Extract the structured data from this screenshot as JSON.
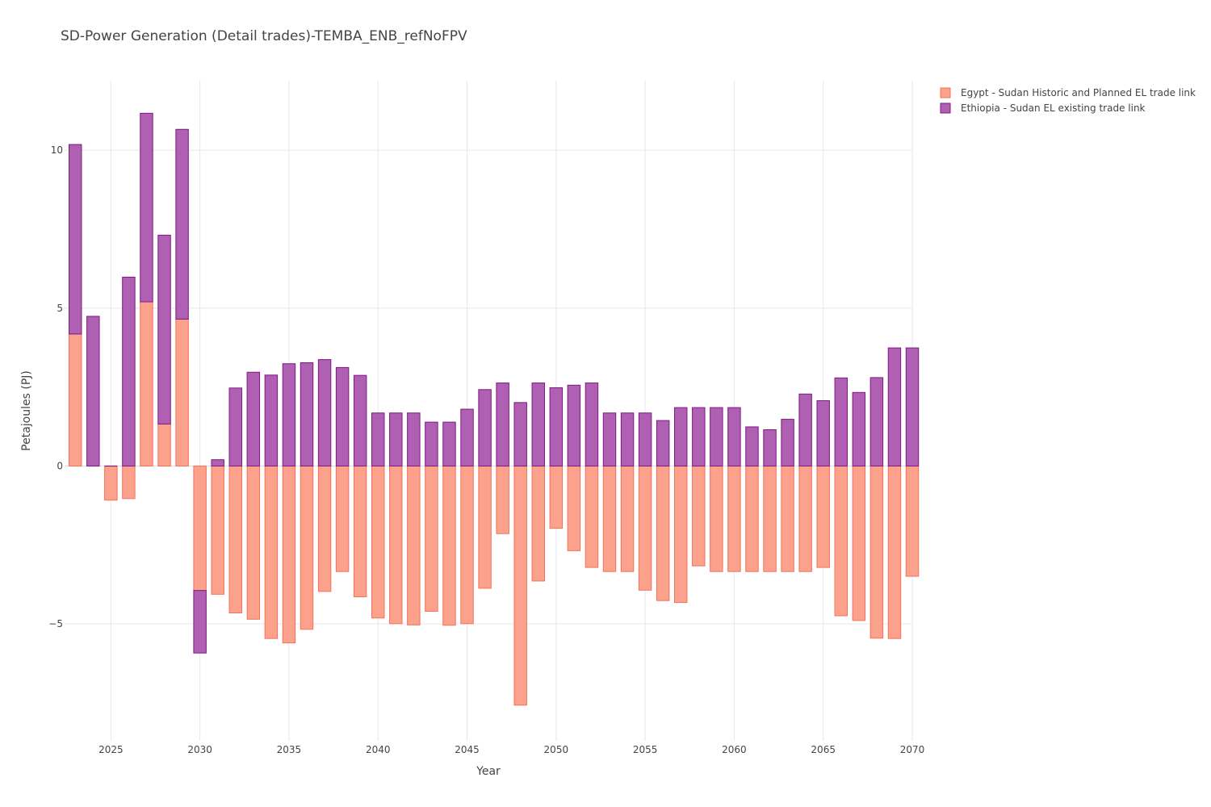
{
  "chart_data": {
    "type": "bar",
    "barmode": "relative",
    "title": "SD-Power Generation (Detail trades)-TEMBA_ENB_refNoFPV",
    "xlabel": "Year",
    "ylabel": "Petajoules (PJ)",
    "xlim": [
      2022.4,
      2070
    ],
    "ylim": [
      -8.7,
      12.2
    ],
    "xticks": [
      2025,
      2030,
      2035,
      2040,
      2045,
      2050,
      2055,
      2060,
      2065,
      2070
    ],
    "xtick_labels": [
      "2025",
      "2030",
      "2035",
      "2040",
      "2045",
      "2050",
      "2055",
      "2060",
      "2065",
      "2070"
    ],
    "yticks": [
      -5,
      0,
      5,
      10
    ],
    "ytick_labels": [
      "−5",
      "0",
      "5",
      "10"
    ],
    "grid": true,
    "legend_position": "top-right",
    "x": [
      2023,
      2024,
      2025,
      2026,
      2027,
      2028,
      2029,
      2030,
      2031,
      2032,
      2033,
      2034,
      2035,
      2036,
      2037,
      2038,
      2039,
      2040,
      2041,
      2042,
      2043,
      2044,
      2045,
      2046,
      2047,
      2048,
      2049,
      2050,
      2051,
      2052,
      2053,
      2054,
      2055,
      2056,
      2057,
      2058,
      2059,
      2060,
      2061,
      2062,
      2063,
      2064,
      2065,
      2066,
      2067,
      2068,
      2069,
      2070
    ],
    "series": [
      {
        "name": "Egypt - Sudan Historic and Planned EL trade link",
        "fill": "#fca28c",
        "stroke": "#f4715a",
        "values": [
          4.18,
          0,
          -1.08,
          -1.03,
          5.2,
          1.33,
          4.65,
          -3.94,
          -4.06,
          -4.65,
          -4.85,
          -5.46,
          -5.6,
          -5.17,
          -3.97,
          -3.34,
          -4.14,
          -4.81,
          -4.99,
          -5.03,
          -4.6,
          -5.04,
          -4.99,
          -3.87,
          -2.14,
          -7.57,
          -3.64,
          -1.97,
          -2.68,
          -3.21,
          -3.34,
          -3.34,
          -3.93,
          -4.26,
          -4.32,
          -3.16,
          -3.34,
          -3.34,
          -3.34,
          -3.34,
          -3.34,
          -3.34,
          -3.21,
          -4.74,
          -4.89,
          -5.45,
          -5.46,
          -3.49
        ]
      },
      {
        "name": "Ethiopia - Sudan EL existing trade link",
        "fill": "#b060b2",
        "stroke": "#7c1a82",
        "values": [
          6.0,
          4.74,
          0,
          5.98,
          5.97,
          5.98,
          6.01,
          -1.98,
          0.2,
          2.47,
          2.97,
          2.88,
          3.24,
          3.27,
          3.37,
          3.12,
          2.87,
          1.68,
          1.68,
          1.68,
          1.39,
          1.39,
          1.8,
          2.42,
          2.63,
          2.01,
          2.63,
          2.48,
          2.56,
          2.63,
          1.68,
          1.68,
          1.68,
          1.44,
          1.85,
          1.85,
          1.85,
          1.85,
          1.24,
          1.15,
          1.48,
          2.28,
          2.07,
          2.79,
          2.33,
          2.8,
          3.74,
          3.74
        ]
      }
    ]
  }
}
